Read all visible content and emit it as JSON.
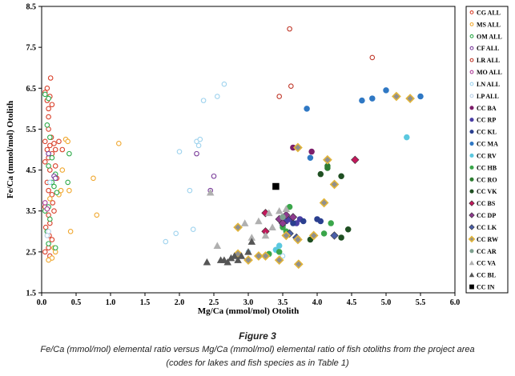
{
  "chart_data": {
    "type": "scatter",
    "xlabel": "Mg/Ca (mmol/mol) Otolith",
    "ylabel": "Fe/Ca (mmol/mol) Otolith",
    "xlim": [
      0.0,
      6.0
    ],
    "ylim": [
      1.5,
      8.5
    ],
    "xticks": [
      "0.0",
      "0.5",
      "1.0",
      "1.5",
      "2.0",
      "2.5",
      "3.0",
      "3.5",
      "4.0",
      "4.5",
      "5.0",
      "5.5",
      "6.0"
    ],
    "yticks": [
      "1.5",
      "2.5",
      "3.5",
      "4.5",
      "5.5",
      "6.5",
      "7.5",
      "8.5"
    ],
    "grid": false,
    "legend_position": "right",
    "series": [
      {
        "name": "CG ALL",
        "marker": "circle-open",
        "color": "#d9412b",
        "points": [
          [
            0.05,
            6.4
          ],
          [
            0.08,
            6.2
          ],
          [
            0.1,
            6.0
          ],
          [
            0.12,
            6.3
          ],
          [
            0.15,
            6.1
          ],
          [
            0.1,
            5.8
          ],
          [
            0.05,
            5.2
          ],
          [
            0.08,
            5.0
          ],
          [
            0.12,
            5.1
          ],
          [
            0.15,
            4.9
          ],
          [
            0.2,
            5.0
          ],
          [
            0.25,
            5.2
          ],
          [
            0.3,
            5.0
          ],
          [
            0.1,
            4.8
          ],
          [
            0.05,
            4.7
          ],
          [
            0.12,
            4.5
          ],
          [
            0.08,
            4.2
          ],
          [
            0.1,
            4.0
          ],
          [
            0.15,
            3.9
          ],
          [
            0.05,
            3.6
          ],
          [
            0.1,
            3.4
          ],
          [
            0.12,
            3.2
          ],
          [
            0.08,
            3.0
          ],
          [
            0.15,
            2.8
          ],
          [
            0.1,
            2.6
          ],
          [
            0.05,
            2.5
          ],
          [
            0.12,
            2.4
          ],
          [
            0.08,
            6.5
          ],
          [
            0.13,
            6.75
          ],
          [
            0.1,
            5.5
          ],
          [
            0.14,
            5.3
          ],
          [
            0.18,
            5.15
          ],
          [
            0.2,
            4.6
          ],
          [
            0.22,
            4.3
          ],
          [
            0.16,
            3.7
          ],
          [
            0.18,
            3.5
          ],
          [
            0.06,
            3.1
          ],
          [
            0.11,
            2.9
          ]
        ]
      },
      {
        "name": "MS ALL",
        "marker": "circle-open",
        "color": "#f0a830",
        "points": [
          [
            0.15,
            2.35
          ],
          [
            0.1,
            2.3
          ],
          [
            0.2,
            2.5
          ],
          [
            0.25,
            3.9
          ],
          [
            0.28,
            4.0
          ],
          [
            0.3,
            4.5
          ],
          [
            0.35,
            5.25
          ],
          [
            0.38,
            5.2
          ],
          [
            0.4,
            4.0
          ],
          [
            0.42,
            3.0
          ],
          [
            0.75,
            4.3
          ],
          [
            0.8,
            3.4
          ],
          [
            1.12,
            5.15
          ],
          [
            0.12,
            3.8
          ],
          [
            0.18,
            2.6
          ]
        ]
      },
      {
        "name": "OM ALL",
        "marker": "circle-open",
        "color": "#2eaa4a",
        "points": [
          [
            0.05,
            6.35
          ],
          [
            0.1,
            6.25
          ],
          [
            0.08,
            5.6
          ],
          [
            0.12,
            5.3
          ],
          [
            0.15,
            4.8
          ],
          [
            0.1,
            4.6
          ],
          [
            0.2,
            4.4
          ],
          [
            0.15,
            4.2
          ],
          [
            0.18,
            4.1
          ],
          [
            0.22,
            3.95
          ],
          [
            0.1,
            3.6
          ],
          [
            0.05,
            3.5
          ],
          [
            0.12,
            3.3
          ],
          [
            0.08,
            3.0
          ],
          [
            0.2,
            2.6
          ],
          [
            0.1,
            2.7
          ],
          [
            0.4,
            4.9
          ],
          [
            0.38,
            4.2
          ]
        ]
      },
      {
        "name": "CF ALL",
        "marker": "circle-open",
        "color": "#7a3d9a",
        "points": [
          [
            0.18,
            4.35
          ],
          [
            0.2,
            4.3
          ],
          [
            2.25,
            4.9
          ],
          [
            2.5,
            4.35
          ],
          [
            2.45,
            4.0
          ],
          [
            0.1,
            4.9
          ]
        ]
      },
      {
        "name": "LR ALL",
        "marker": "circle-open",
        "color": "#c0392b",
        "points": [
          [
            3.6,
            7.95
          ],
          [
            4.8,
            7.25
          ],
          [
            3.62,
            6.55
          ],
          [
            3.45,
            6.3
          ]
        ]
      },
      {
        "name": "MO ALL",
        "marker": "circle-open",
        "color": "#b0409a",
        "points": [
          [
            0.05,
            3.7
          ],
          [
            0.08,
            3.55
          ]
        ]
      },
      {
        "name": "LN ALL",
        "marker": "circle-open",
        "color": "#9fd3ee",
        "points": [
          [
            2.35,
            6.2
          ],
          [
            2.55,
            6.3
          ],
          [
            2.65,
            6.6
          ],
          [
            2.25,
            5.2
          ],
          [
            2.3,
            5.25
          ],
          [
            2.28,
            5.1
          ],
          [
            2.0,
            4.95
          ],
          [
            2.15,
            4.0
          ],
          [
            1.8,
            2.75
          ],
          [
            1.95,
            2.95
          ],
          [
            2.2,
            3.05
          ],
          [
            3.0,
            2.5
          ],
          [
            3.5,
            2.4
          ],
          [
            0.12,
            4.2
          ]
        ]
      },
      {
        "name": "LP ALL",
        "marker": "circle-open",
        "color": "#b8cfe6",
        "points": [
          [
            0.1,
            3.0
          ],
          [
            0.08,
            2.9
          ]
        ]
      },
      {
        "name": "CC BA",
        "marker": "circle",
        "color": "#7d1e6a",
        "points": [
          [
            3.65,
            5.05
          ],
          [
            3.92,
            4.95
          ]
        ]
      },
      {
        "name": "CC RP",
        "marker": "circle",
        "color": "#4b3fa5",
        "points": [
          [
            3.55,
            3.25
          ],
          [
            3.6,
            3.3
          ],
          [
            3.7,
            3.2
          ],
          [
            3.75,
            3.3
          ]
        ]
      },
      {
        "name": "CC KL",
        "marker": "circle",
        "color": "#2a3f8f",
        "points": [
          [
            3.8,
            3.25
          ],
          [
            4.0,
            3.3
          ],
          [
            4.05,
            3.25
          ],
          [
            3.65,
            3.2
          ],
          [
            3.5,
            3.15
          ]
        ]
      },
      {
        "name": "CC MA",
        "marker": "circle",
        "color": "#2f78c4",
        "points": [
          [
            3.85,
            6.0
          ],
          [
            4.65,
            6.2
          ],
          [
            4.8,
            6.25
          ],
          [
            5.0,
            6.45
          ],
          [
            5.5,
            6.3
          ],
          [
            3.9,
            4.8
          ]
        ]
      },
      {
        "name": "CC RV",
        "marker": "circle",
        "color": "#5bc8df",
        "points": [
          [
            5.3,
            5.3
          ],
          [
            3.45,
            2.65
          ],
          [
            3.4,
            2.55
          ]
        ]
      },
      {
        "name": "CC HB",
        "marker": "circle",
        "color": "#3aa64a",
        "points": [
          [
            3.6,
            3.6
          ],
          [
            3.5,
            3.1
          ],
          [
            3.55,
            3.0
          ],
          [
            4.1,
            2.95
          ],
          [
            4.2,
            3.2
          ],
          [
            3.45,
            2.5
          ],
          [
            3.3,
            2.45
          ]
        ]
      },
      {
        "name": "CC RO",
        "marker": "circle",
        "color": "#2e7d32",
        "points": [
          [
            4.15,
            4.6
          ],
          [
            4.15,
            4.55
          ]
        ]
      },
      {
        "name": "CC VK",
        "marker": "circle",
        "color": "#1f4f22",
        "points": [
          [
            4.05,
            4.4
          ],
          [
            4.35,
            4.35
          ],
          [
            4.35,
            2.85
          ],
          [
            4.45,
            3.05
          ],
          [
            3.9,
            2.8
          ]
        ]
      },
      {
        "name": "CC BS",
        "marker": "diamond",
        "color": "#c2185b",
        "points": [
          [
            4.55,
            4.75
          ],
          [
            3.25,
            3.45
          ],
          [
            3.25,
            3.0
          ]
        ]
      },
      {
        "name": "CC DP",
        "marker": "diamond",
        "color": "#8e3a8e",
        "points": [
          [
            3.55,
            3.4
          ],
          [
            3.65,
            3.35
          ],
          [
            3.45,
            3.3
          ],
          [
            3.5,
            3.2
          ]
        ]
      },
      {
        "name": "CC LK",
        "marker": "diamond",
        "color": "#4a5fa8",
        "points": [
          [
            3.7,
            2.85
          ],
          [
            3.6,
            2.95
          ],
          [
            4.25,
            2.9
          ]
        ]
      },
      {
        "name": "CC RW",
        "marker": "diamond-gold",
        "color": "#8f8f8f",
        "points": [
          [
            5.15,
            6.3
          ],
          [
            5.35,
            6.25
          ],
          [
            3.72,
            5.05
          ],
          [
            4.15,
            4.75
          ],
          [
            4.25,
            4.15
          ],
          [
            4.1,
            3.7
          ],
          [
            3.25,
            2.4
          ],
          [
            3.15,
            2.4
          ],
          [
            3.45,
            2.3
          ],
          [
            3.73,
            2.2
          ],
          [
            3.0,
            2.3
          ],
          [
            2.85,
            3.1
          ],
          [
            2.85,
            2.45
          ],
          [
            3.55,
            2.9
          ],
          [
            3.72,
            2.8
          ],
          [
            3.95,
            2.9
          ]
        ]
      },
      {
        "name": "CC AR",
        "marker": "circle",
        "color": "#7ea08f",
        "points": [
          [
            3.5,
            3.35
          ]
        ]
      },
      {
        "name": "CC VA",
        "marker": "triangle",
        "color": "#b0b0b0",
        "points": [
          [
            2.45,
            3.95
          ],
          [
            2.95,
            3.2
          ],
          [
            3.15,
            3.25
          ],
          [
            3.3,
            3.45
          ],
          [
            3.45,
            3.5
          ],
          [
            3.55,
            3.55
          ],
          [
            3.05,
            2.85
          ],
          [
            3.25,
            2.9
          ],
          [
            2.55,
            2.65
          ],
          [
            3.35,
            3.1
          ]
        ]
      },
      {
        "name": "CC BL",
        "marker": "triangle",
        "color": "#555555",
        "points": [
          [
            2.4,
            2.25
          ],
          [
            2.6,
            2.3
          ],
          [
            2.7,
            2.25
          ],
          [
            2.75,
            2.35
          ],
          [
            2.85,
            2.3
          ],
          [
            2.9,
            2.4
          ],
          [
            3.0,
            2.5
          ],
          [
            3.05,
            2.75
          ],
          [
            2.8,
            2.4
          ],
          [
            2.65,
            2.3
          ]
        ]
      },
      {
        "name": "CC IN",
        "marker": "square",
        "color": "#000000",
        "points": [
          [
            3.4,
            4.1
          ]
        ]
      }
    ]
  },
  "caption": {
    "figure": "Figure 3",
    "line1": "Fe/Ca (mmol/mol) elemental ratio versus Mg/Ca (mmol/mol) elemental ratio of fish otoliths from the project area",
    "line2": "(codes for lakes and fish species as in Table 1)"
  }
}
